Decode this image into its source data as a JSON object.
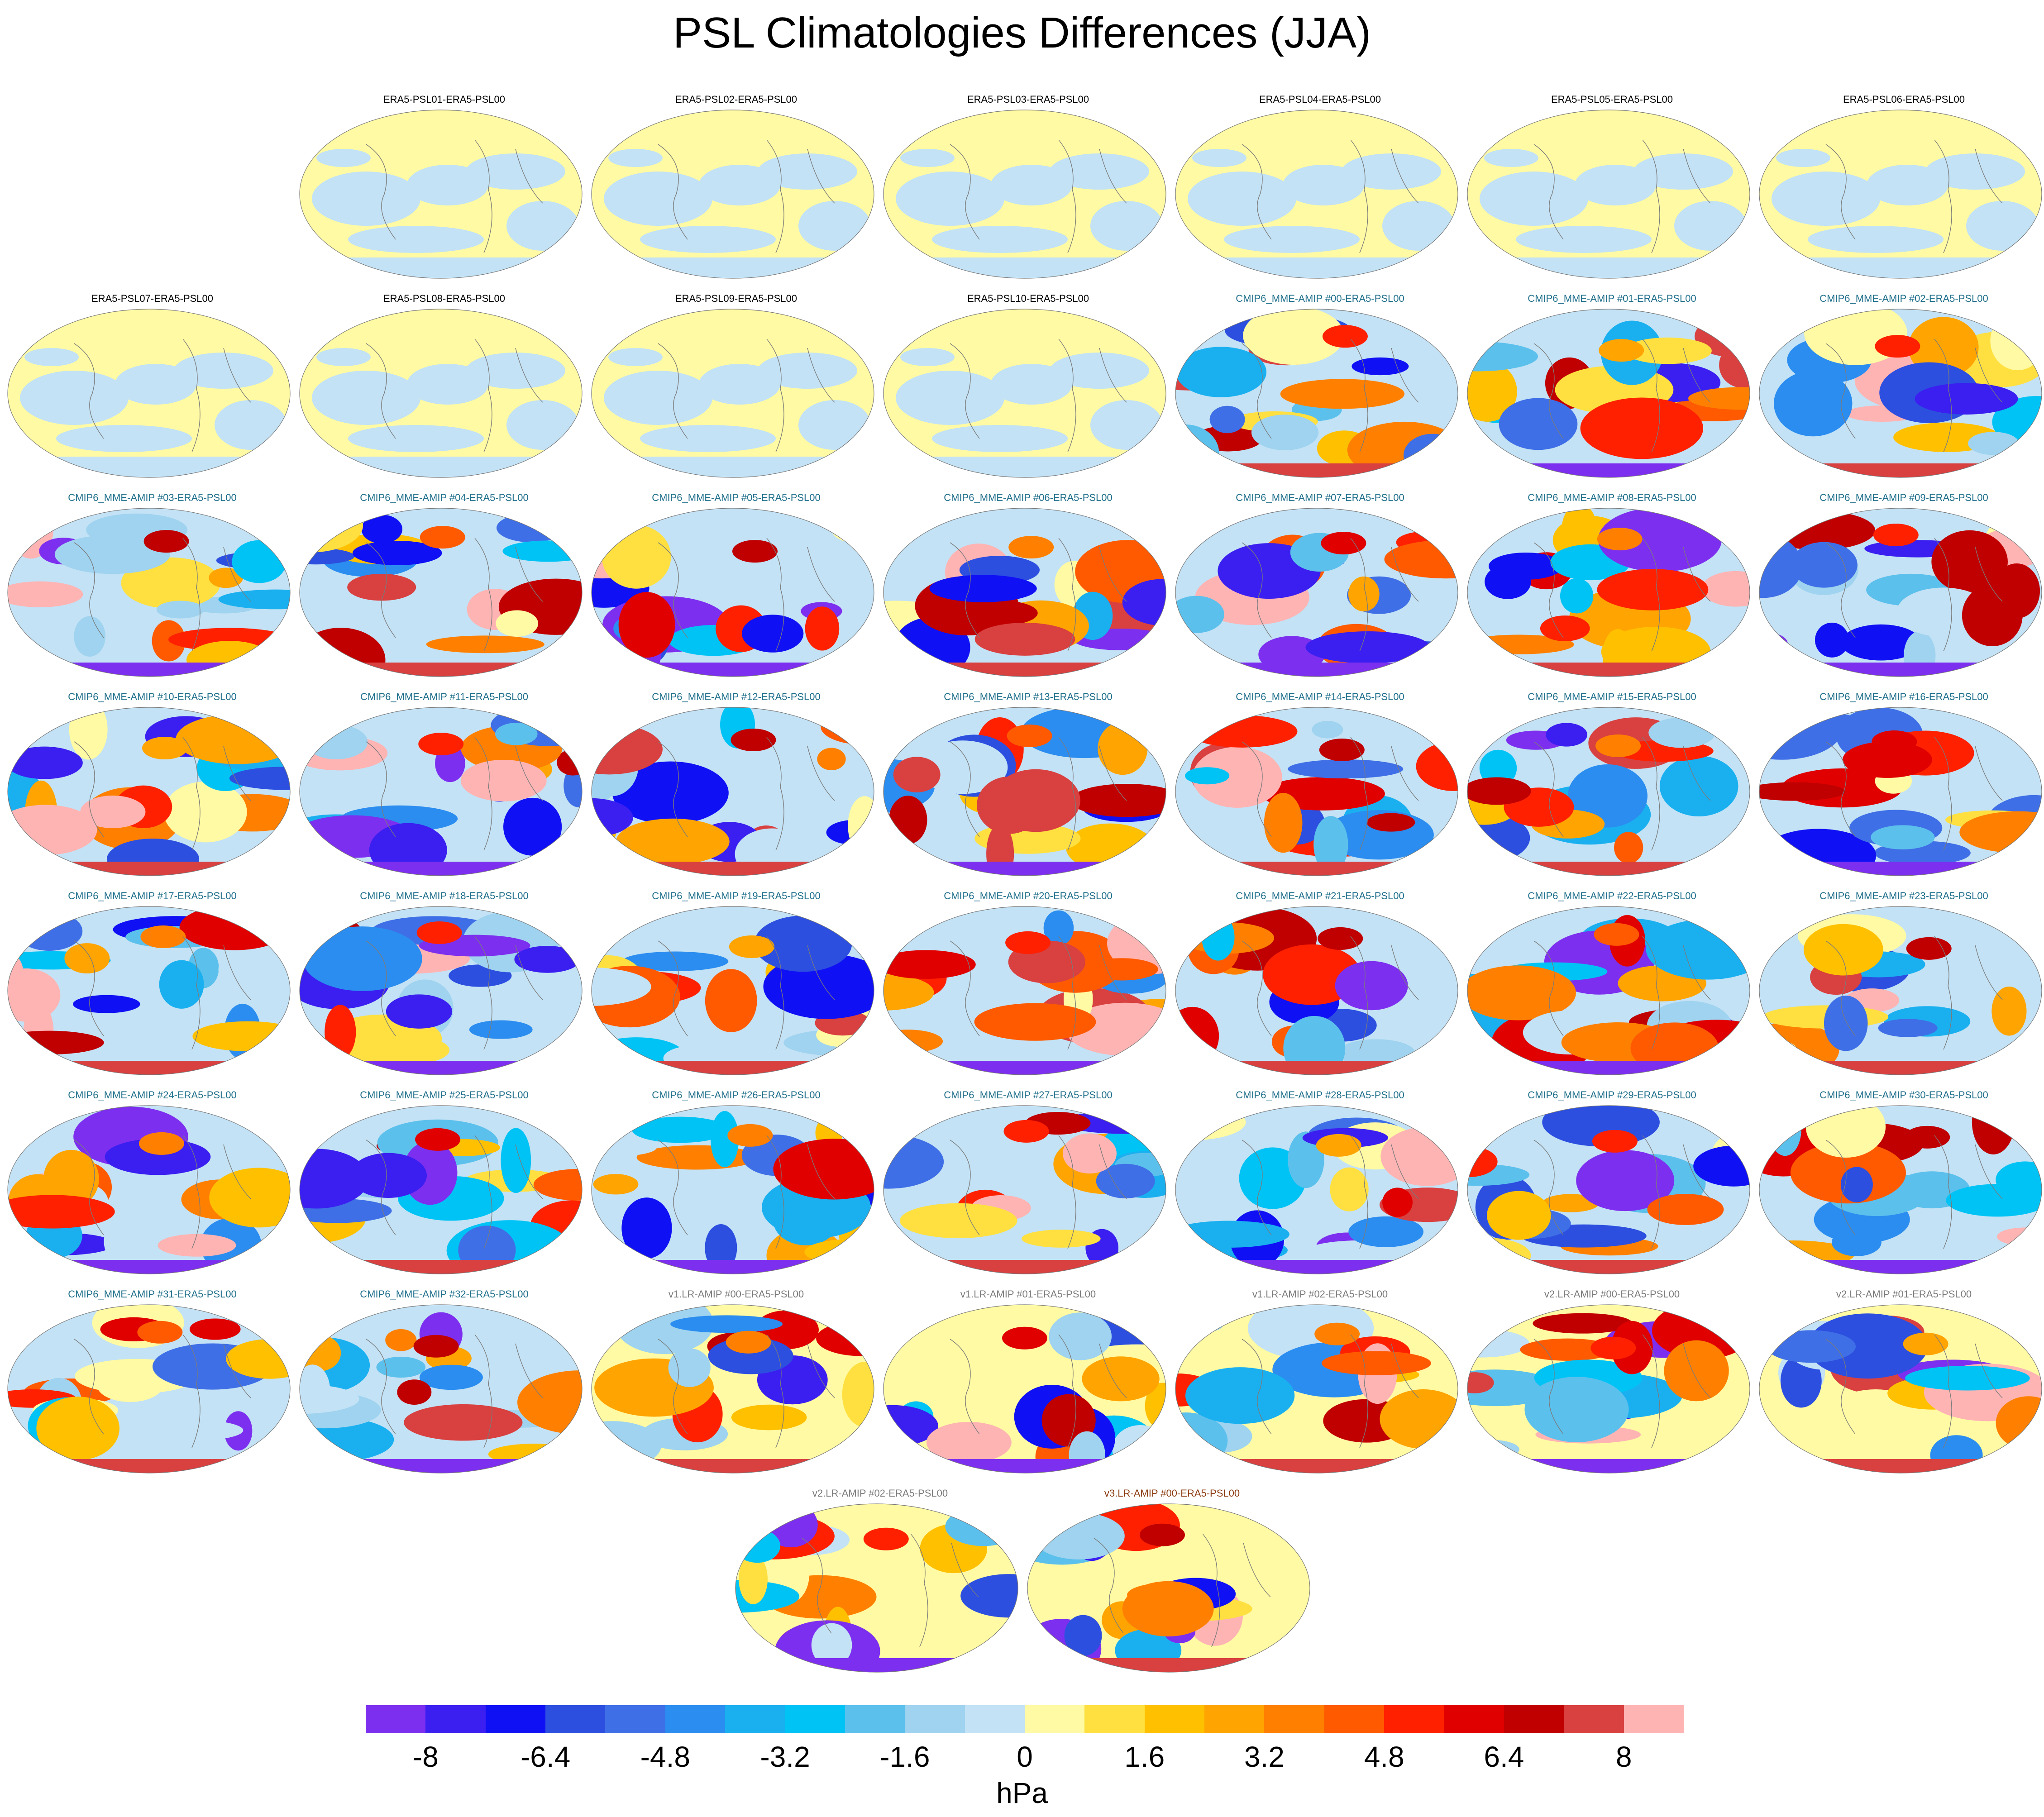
{
  "title": "PSL Climatologies Differences (JJA)",
  "units": "hPa",
  "colorbar": {
    "colors": [
      "#7d2fef",
      "#3a1ff0",
      "#1010f5",
      "#2c4fe0",
      "#3f6fe6",
      "#2b8df0",
      "#1ab0f0",
      "#00c3f5",
      "#5cc0ec",
      "#9fd3ef",
      "#c3e2f5",
      "#fffaa3",
      "#ffe040",
      "#ffc000",
      "#ffa400",
      "#ff8000",
      "#ff5a00",
      "#ff2000",
      "#e00000",
      "#c00000",
      "#d94040",
      "#ffb4b4"
    ],
    "tick_labels": [
      "-8",
      "-6.4",
      "-4.8",
      "-3.2",
      "-1.6",
      "0",
      "1.6",
      "3.2",
      "4.8",
      "6.4",
      "8"
    ]
  },
  "panels": [
    {
      "title": "ERA5-PSL01-ERA5-PSL00",
      "color": "#000000",
      "style": "era"
    },
    {
      "title": "ERA5-PSL02-ERA5-PSL00",
      "color": "#000000",
      "style": "era"
    },
    {
      "title": "ERA5-PSL03-ERA5-PSL00",
      "color": "#000000",
      "style": "era"
    },
    {
      "title": "ERA5-PSL04-ERA5-PSL00",
      "color": "#000000",
      "style": "era"
    },
    {
      "title": "ERA5-PSL05-ERA5-PSL00",
      "color": "#000000",
      "style": "era"
    },
    {
      "title": "ERA5-PSL06-ERA5-PSL00",
      "color": "#000000",
      "style": "era"
    },
    {
      "title": "ERA5-PSL07-ERA5-PSL00",
      "color": "#000000",
      "style": "era"
    },
    {
      "title": "ERA5-PSL08-ERA5-PSL00",
      "color": "#000000",
      "style": "era"
    },
    {
      "title": "ERA5-PSL09-ERA5-PSL00",
      "color": "#000000",
      "style": "era"
    },
    {
      "title": "ERA5-PSL10-ERA5-PSL00",
      "color": "#000000",
      "style": "era"
    },
    {
      "title": "CMIP6_MME-AMIP  #00-ERA5-PSL00",
      "color": "#1f6f8b",
      "style": "cmip"
    },
    {
      "title": "CMIP6_MME-AMIP  #01-ERA5-PSL00",
      "color": "#1f6f8b",
      "style": "cmip"
    },
    {
      "title": "CMIP6_MME-AMIP  #02-ERA5-PSL00",
      "color": "#1f6f8b",
      "style": "cmip"
    },
    {
      "title": "CMIP6_MME-AMIP  #03-ERA5-PSL00",
      "color": "#1f6f8b",
      "style": "cmip"
    },
    {
      "title": "CMIP6_MME-AMIP  #04-ERA5-PSL00",
      "color": "#1f6f8b",
      "style": "cmip"
    },
    {
      "title": "CMIP6_MME-AMIP  #05-ERA5-PSL00",
      "color": "#1f6f8b",
      "style": "cmip"
    },
    {
      "title": "CMIP6_MME-AMIP  #06-ERA5-PSL00",
      "color": "#1f6f8b",
      "style": "cmip"
    },
    {
      "title": "CMIP6_MME-AMIP  #07-ERA5-PSL00",
      "color": "#1f6f8b",
      "style": "cmip"
    },
    {
      "title": "CMIP6_MME-AMIP  #08-ERA5-PSL00",
      "color": "#1f6f8b",
      "style": "cmip"
    },
    {
      "title": "CMIP6_MME-AMIP  #09-ERA5-PSL00",
      "color": "#1f6f8b",
      "style": "cmip"
    },
    {
      "title": "CMIP6_MME-AMIP  #10-ERA5-PSL00",
      "color": "#1f6f8b",
      "style": "cmip"
    },
    {
      "title": "CMIP6_MME-AMIP  #11-ERA5-PSL00",
      "color": "#1f6f8b",
      "style": "cmip"
    },
    {
      "title": "CMIP6_MME-AMIP  #12-ERA5-PSL00",
      "color": "#1f6f8b",
      "style": "cmip"
    },
    {
      "title": "CMIP6_MME-AMIP  #13-ERA5-PSL00",
      "color": "#1f6f8b",
      "style": "cmip"
    },
    {
      "title": "CMIP6_MME-AMIP  #14-ERA5-PSL00",
      "color": "#1f6f8b",
      "style": "cmip"
    },
    {
      "title": "CMIP6_MME-AMIP  #15-ERA5-PSL00",
      "color": "#1f6f8b",
      "style": "cmip"
    },
    {
      "title": "CMIP6_MME-AMIP  #16-ERA5-PSL00",
      "color": "#1f6f8b",
      "style": "cmip"
    },
    {
      "title": "CMIP6_MME-AMIP  #17-ERA5-PSL00",
      "color": "#1f6f8b",
      "style": "cmip"
    },
    {
      "title": "CMIP6_MME-AMIP  #18-ERA5-PSL00",
      "color": "#1f6f8b",
      "style": "cmip"
    },
    {
      "title": "CMIP6_MME-AMIP  #19-ERA5-PSL00",
      "color": "#1f6f8b",
      "style": "cmip"
    },
    {
      "title": "CMIP6_MME-AMIP  #20-ERA5-PSL00",
      "color": "#1f6f8b",
      "style": "cmip"
    },
    {
      "title": "CMIP6_MME-AMIP  #21-ERA5-PSL00",
      "color": "#1f6f8b",
      "style": "cmip"
    },
    {
      "title": "CMIP6_MME-AMIP  #22-ERA5-PSL00",
      "color": "#1f6f8b",
      "style": "cmip"
    },
    {
      "title": "CMIP6_MME-AMIP  #23-ERA5-PSL00",
      "color": "#1f6f8b",
      "style": "cmip"
    },
    {
      "title": "CMIP6_MME-AMIP  #24-ERA5-PSL00",
      "color": "#1f6f8b",
      "style": "cmip"
    },
    {
      "title": "CMIP6_MME-AMIP  #25-ERA5-PSL00",
      "color": "#1f6f8b",
      "style": "cmip"
    },
    {
      "title": "CMIP6_MME-AMIP  #26-ERA5-PSL00",
      "color": "#1f6f8b",
      "style": "cmip"
    },
    {
      "title": "CMIP6_MME-AMIP  #27-ERA5-PSL00",
      "color": "#1f6f8b",
      "style": "cmip"
    },
    {
      "title": "CMIP6_MME-AMIP  #28-ERA5-PSL00",
      "color": "#1f6f8b",
      "style": "cmip"
    },
    {
      "title": "CMIP6_MME-AMIP  #29-ERA5-PSL00",
      "color": "#1f6f8b",
      "style": "cmip"
    },
    {
      "title": "CMIP6_MME-AMIP  #30-ERA5-PSL00",
      "color": "#1f6f8b",
      "style": "cmip"
    },
    {
      "title": "CMIP6_MME-AMIP  #31-ERA5-PSL00",
      "color": "#1f6f8b",
      "style": "cmip"
    },
    {
      "title": "CMIP6_MME-AMIP  #32-ERA5-PSL00",
      "color": "#1f6f8b",
      "style": "cmip"
    },
    {
      "title": "v1.LR-AMIP  #00-ERA5-PSL00",
      "color": "#7a7a7a",
      "style": "v"
    },
    {
      "title": "v1.LR-AMIP  #01-ERA5-PSL00",
      "color": "#7a7a7a",
      "style": "v"
    },
    {
      "title": "v1.LR-AMIP  #02-ERA5-PSL00",
      "color": "#7a7a7a",
      "style": "v"
    },
    {
      "title": "v2.LR-AMIP  #00-ERA5-PSL00",
      "color": "#7a7a7a",
      "style": "v"
    },
    {
      "title": "v2.LR-AMIP  #01-ERA5-PSL00",
      "color": "#7a7a7a",
      "style": "v"
    },
    {
      "title": "v2.LR-AMIP  #02-ERA5-PSL00",
      "color": "#7a7a7a",
      "style": "v"
    },
    {
      "title": "v3.LR-AMIP  #00-ERA5-PSL00",
      "color": "#8b3a0f",
      "style": "v"
    }
  ]
}
